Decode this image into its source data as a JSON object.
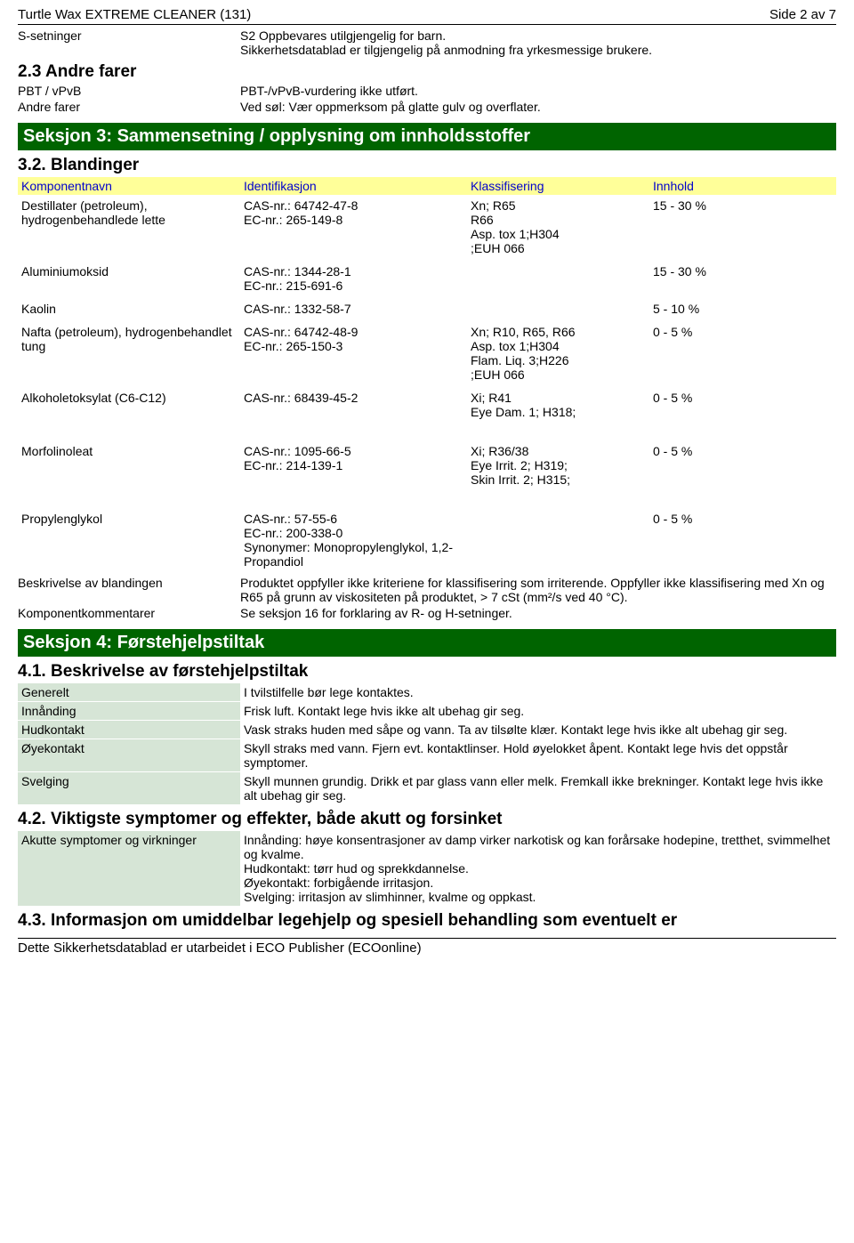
{
  "header": {
    "left": "Turtle Wax EXTREME CLEANER (131)",
    "right": "Side 2 av 7"
  },
  "topBlocks": [
    {
      "key": "S-setninger",
      "val": "S2 Oppbevares utilgjengelig for barn.\nSikkerhetsdatablad er tilgjengelig på anmodning fra yrkesmessige brukere."
    }
  ],
  "sec23Title": "2.3 Andre farer",
  "sec23Rows": [
    {
      "key": "PBT / vPvB",
      "val": "PBT-/vPvB-vurdering ikke utført."
    },
    {
      "key": "Andre farer",
      "val": "Ved søl: Vær oppmerksom på glatte gulv og overflater."
    }
  ],
  "section3": {
    "banner": "Seksjon 3: Sammensetning / opplysning om innholdsstoffer",
    "subTitle": "3.2. Blandinger",
    "headers": {
      "name": "Komponentnavn",
      "ident": "Identifikasjon",
      "class": "Klassifisering",
      "amount": "Innhold"
    },
    "components": [
      {
        "name": "Destillater (petroleum), hydrogenbehandlede lette",
        "ident": "CAS-nr.: 64742-47-8\nEC-nr.: 265-149-8",
        "class": "Xn; R65\nR66\nAsp. tox 1;H304\n;EUH 066",
        "amount": "15 - 30 %"
      },
      {
        "name": "Aluminiumoksid",
        "ident": "CAS-nr.: 1344-28-1\nEC-nr.: 215-691-6",
        "class": "",
        "amount": "15 - 30 %"
      },
      {
        "name": "Kaolin",
        "ident": "CAS-nr.: 1332-58-7",
        "class": "",
        "amount": "5 - 10 %"
      },
      {
        "name": "Nafta (petroleum), hydrogenbehandlet tung",
        "ident": "CAS-nr.: 64742-48-9\nEC-nr.: 265-150-3",
        "class": "Xn; R10, R65, R66\nAsp. tox 1;H304\nFlam. Liq. 3;H226\n;EUH 066",
        "amount": "0 - 5 %"
      },
      {
        "name": "Alkoholetoksylat (C6-C12)",
        "ident": "CAS-nr.: 68439-45-2",
        "class": "Xi; R41\nEye Dam. 1; H318;",
        "amount": "0 - 5 %"
      },
      {
        "name": "Morfolinoleat",
        "ident": "CAS-nr.: 1095-66-5\nEC-nr.: 214-139-1",
        "class": "Xi; R36/38\nEye Irrit. 2; H319;\nSkin Irrit. 2; H315;",
        "amount": "0 - 5 %",
        "gap": true
      },
      {
        "name": "Propylenglykol",
        "ident": "CAS-nr.: 57-55-6\nEC-nr.: 200-338-0\nSynonymer: Monopropylenglykol, 1,2-Propandiol",
        "class": "",
        "amount": "0 - 5 %",
        "gap": true
      }
    ],
    "afterRows": [
      {
        "key": "Beskrivelse av blandingen",
        "val": "Produktet oppfyller ikke kriteriene for klassifisering som irriterende. Oppfyller ikke klassifisering med Xn og R65 på grunn av viskositeten på produktet, > 7 cSt (mm²/s ved 40 °C)."
      },
      {
        "key": "Komponentkommentarer",
        "val": "Se seksjon 16 for forklaring av R- og H-setninger."
      }
    ]
  },
  "section4": {
    "banner": "Seksjon 4: Førstehjelpstiltak",
    "sub41": "4.1. Beskrivelse av førstehjelpstiltak",
    "rows41": [
      {
        "key": "Generelt",
        "val": "I tvilstilfelle bør lege kontaktes."
      },
      {
        "key": "Innånding",
        "val": "Frisk luft. Kontakt lege hvis ikke alt ubehag gir seg."
      },
      {
        "key": "Hudkontakt",
        "val": "Vask straks huden med såpe og vann. Ta av tilsølte klær. Kontakt lege hvis ikke alt ubehag gir seg."
      },
      {
        "key": "Øyekontakt",
        "val": "Skyll straks med vann. Fjern evt. kontaktlinser. Hold øyelokket åpent. Kontakt lege hvis det oppstår symptomer."
      },
      {
        "key": "Svelging",
        "val": "Skyll munnen grundig. Drikk et par glass vann eller melk. Fremkall ikke brekninger. Kontakt lege hvis ikke alt ubehag gir seg."
      }
    ],
    "sub42": "4.2. Viktigste symptomer og effekter, både akutt og forsinket",
    "rows42": [
      {
        "key": "Akutte symptomer og virkninger",
        "val": "Innånding: høye konsentrasjoner av damp virker narkotisk og kan forårsake hodepine, tretthet, svimmelhet og kvalme.\nHudkontakt: tørr hud og sprekkdannelse.\nØyekontakt: forbigående irritasjon.\nSvelging: irritasjon av slimhinner, kvalme og oppkast."
      }
    ],
    "sub43": "4.3. Informasjon om umiddelbar legehjelp og spesiell behandling som eventuelt er"
  },
  "footer": "Dette Sikkerhetsdatablad er utarbeidet i ECO Publisher (ECOonline)"
}
